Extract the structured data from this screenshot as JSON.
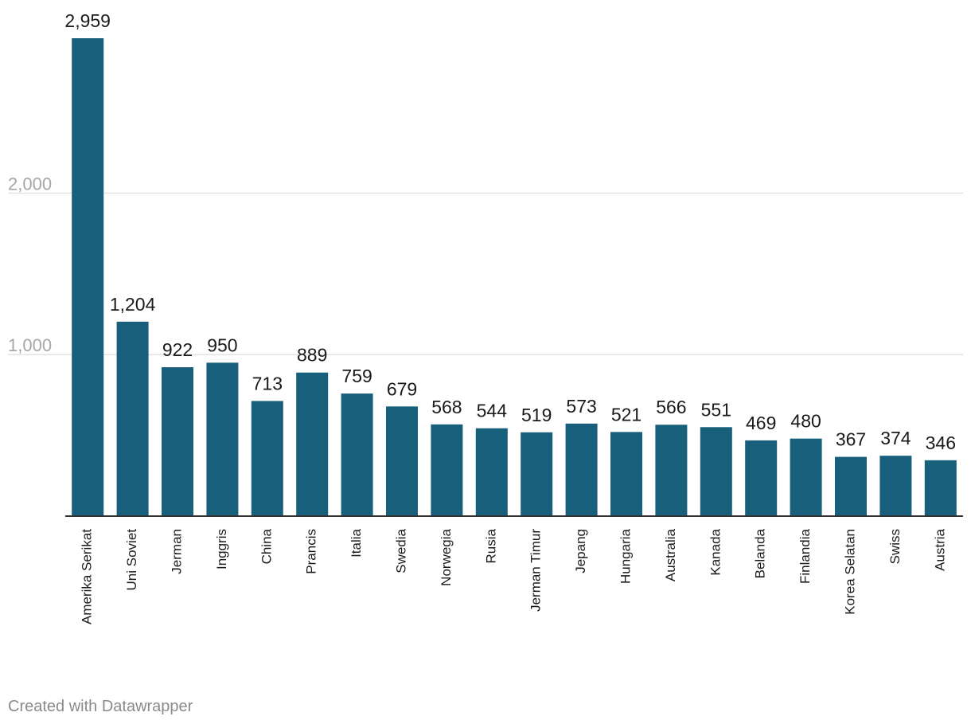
{
  "chart_data": {
    "type": "bar",
    "categories": [
      "Amerika Serikat",
      "Uni Soviet",
      "Jerman",
      "Inggris",
      "China",
      "Prancis",
      "Italia",
      "Swedia",
      "Norwegia",
      "Rusia",
      "Jerman Timur",
      "Jepang",
      "Hungaria",
      "Australia",
      "Kanada",
      "Belanda",
      "Finlandia",
      "Korea Selatan",
      "Swiss",
      "Austria"
    ],
    "values": [
      2959,
      1204,
      922,
      950,
      713,
      889,
      759,
      679,
      568,
      544,
      519,
      573,
      521,
      566,
      551,
      469,
      480,
      367,
      374,
      346
    ],
    "value_labels": [
      "2,959",
      "1,204",
      "922",
      "950",
      "713",
      "889",
      "759",
      "679",
      "568",
      "544",
      "519",
      "573",
      "521",
      "566",
      "551",
      "469",
      "480",
      "367",
      "374",
      "346"
    ],
    "yticks": [
      1000,
      2000
    ],
    "ytick_labels": [
      "1,000",
      "2,000"
    ],
    "ylim": [
      0,
      2959
    ],
    "grid": true,
    "bar_color": "#175f7a",
    "gridline_color": "#e3e3e3",
    "baseline_color": "#333333"
  },
  "footer": {
    "credit": "Created with Datawrapper"
  }
}
